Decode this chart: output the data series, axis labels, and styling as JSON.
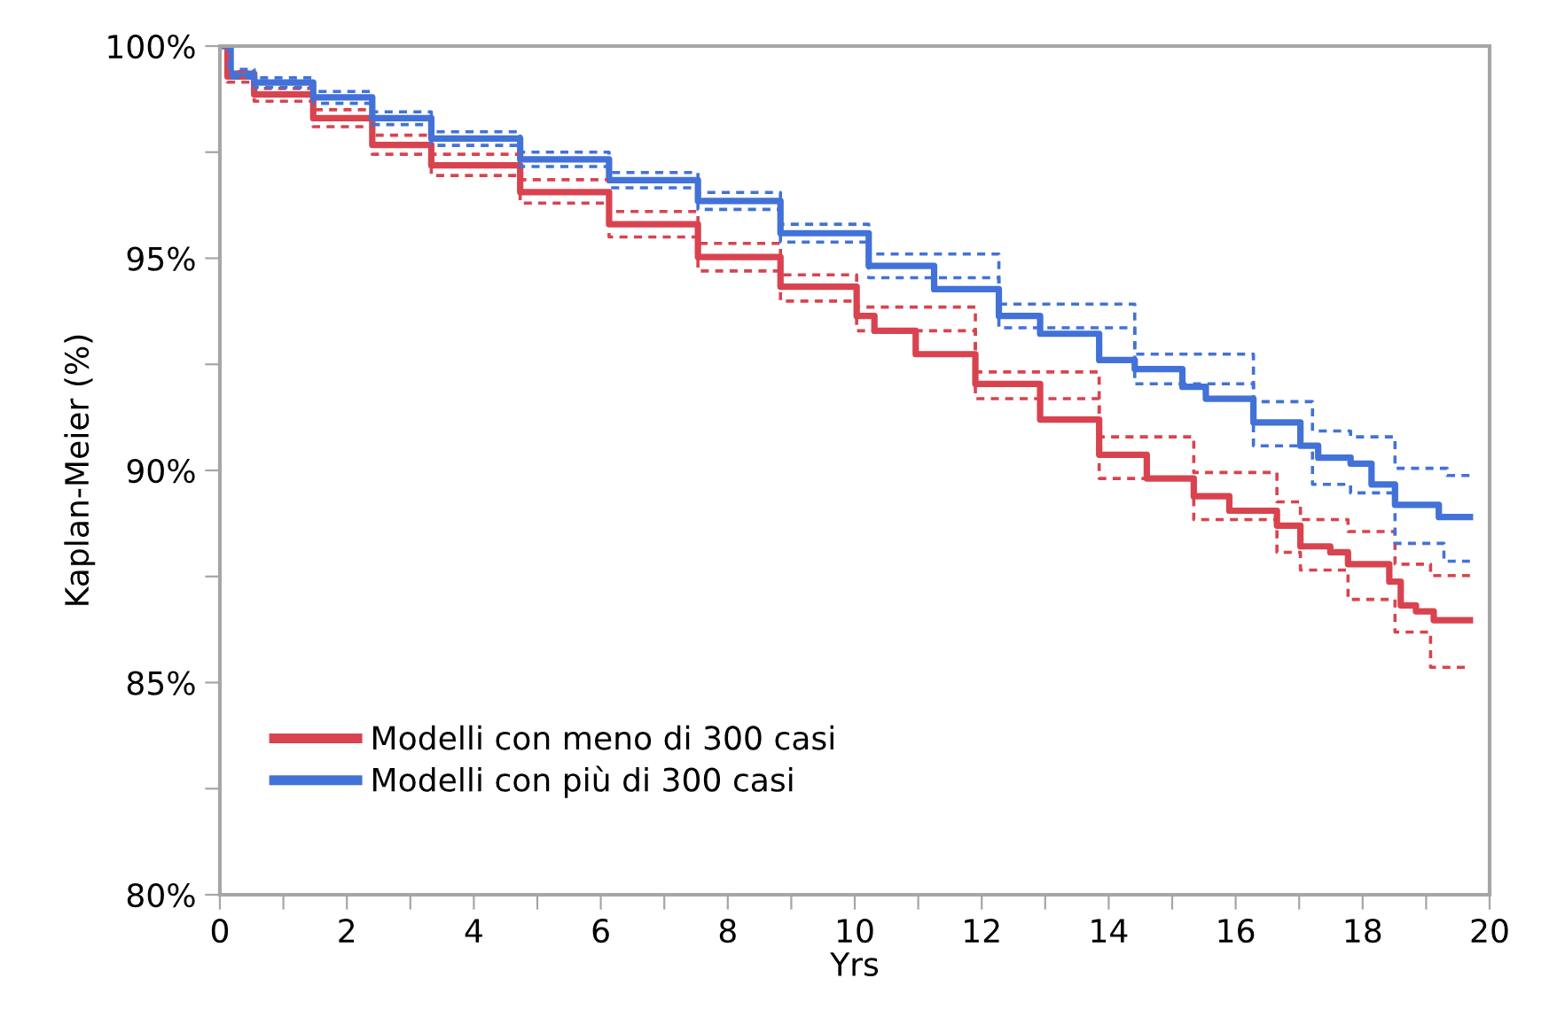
{
  "chart_data": {
    "type": "step",
    "xlabel": "Yrs",
    "ylabel": "Kaplan-Meier (%)",
    "xlim": [
      0,
      20
    ],
    "ylim": [
      80,
      100
    ],
    "xticks": [
      0,
      {
        "value": 1,
        "label": null
      },
      2,
      {
        "value": 3,
        "label": null
      },
      4,
      {
        "value": 5,
        "label": null
      },
      6,
      {
        "value": 7,
        "label": null
      },
      8,
      {
        "value": 9,
        "label": null
      },
      10,
      {
        "value": 11,
        "label": null
      },
      12,
      {
        "value": 13,
        "label": null
      },
      14,
      {
        "value": 15,
        "label": null
      },
      16,
      {
        "value": 17,
        "label": null
      },
      18,
      {
        "value": 19,
        "label": null
      },
      20
    ],
    "yticks": [
      {
        "value": 80,
        "label": "80%"
      },
      {
        "value": 82.5,
        "label": null
      },
      {
        "value": 85,
        "label": "85%"
      },
      {
        "value": 87.5,
        "label": null
      },
      {
        "value": 90,
        "label": "90%"
      },
      {
        "value": 92.5,
        "label": null
      },
      {
        "value": 95,
        "label": "95%"
      },
      {
        "value": 97.5,
        "label": null
      },
      {
        "value": 100,
        "label": "100%"
      }
    ],
    "grid": false,
    "legend": "bottom left",
    "series": [
      {
        "name": "Modelli con meno di 300 casi",
        "color": "#d9434f",
        "line_style": "solid",
        "x": [
          0,
          0.12,
          0.54,
          1.47,
          2.4,
          3.33,
          4.73,
          6.13,
          7.53,
          8.83,
          10.03,
          10.31,
          10.96,
          11.9,
          12.92,
          13.85,
          14.6,
          15.34,
          15.9,
          16.65,
          17.02,
          17.49,
          17.77,
          18.42,
          18.6,
          18.84,
          19.12,
          19.69
        ],
        "values": [
          100,
          99.28,
          98.86,
          98.3,
          97.67,
          97.19,
          96.56,
          95.8,
          95.03,
          94.33,
          93.64,
          93.29,
          92.74,
          92.04,
          91.2,
          90.37,
          89.81,
          89.39,
          89.05,
          88.7,
          88.21,
          88.07,
          87.79,
          87.38,
          86.82,
          86.68,
          86.47,
          86.47
        ]
      },
      {
        "name": "Modelli con più di 300 casi",
        "color": "#4272d8",
        "line_style": "solid",
        "x": [
          0,
          0.17,
          0.54,
          1.47,
          2.4,
          3.33,
          4.73,
          6.13,
          7.53,
          8.83,
          10.22,
          11.25,
          12.27,
          12.92,
          13.85,
          14.41,
          15.16,
          15.53,
          16.28,
          17.02,
          17.3,
          17.81,
          18.14,
          18.51,
          19.2,
          19.69
        ],
        "values": [
          100,
          99.35,
          99.14,
          98.79,
          98.3,
          97.82,
          97.33,
          96.84,
          96.35,
          95.59,
          94.82,
          94.27,
          93.64,
          93.22,
          92.6,
          92.39,
          91.97,
          91.69,
          91.13,
          90.58,
          90.3,
          90.16,
          89.67,
          89.19,
          88.9,
          88.9
        ]
      },
      {
        "color": "#d9434f",
        "line_style": "dashed",
        "x": [
          0,
          0.12,
          0.54,
          1.47,
          2.4,
          3.33,
          4.73,
          6.13,
          7.53,
          8.83,
          10.03,
          11.9,
          13.85,
          15.34,
          16.65,
          17.02,
          17.77,
          18.51,
          19.07,
          19.69
        ],
        "values": [
          100,
          99.4,
          99.0,
          98.5,
          97.9,
          97.45,
          96.85,
          96.1,
          95.35,
          94.61,
          93.85,
          92.32,
          90.79,
          89.95,
          89.26,
          88.84,
          88.56,
          87.79,
          87.52,
          87.52
        ]
      },
      {
        "color": "#d9434f",
        "line_style": "dashed",
        "x": [
          0,
          0.12,
          0.54,
          1.47,
          2.4,
          3.33,
          4.73,
          6.13,
          7.53,
          8.83,
          10.03,
          11.9,
          13.85,
          15.34,
          16.65,
          17.02,
          17.77,
          18.51,
          19.07,
          19.69
        ],
        "values": [
          100,
          99.15,
          98.7,
          98.1,
          97.45,
          96.95,
          96.3,
          95.5,
          94.7,
          93.99,
          93.29,
          91.69,
          89.81,
          88.84,
          88.07,
          87.65,
          86.96,
          86.19,
          85.36,
          85.36
        ]
      },
      {
        "color": "#4272d8",
        "line_style": "dashed",
        "x": [
          0,
          0.17,
          0.54,
          1.47,
          2.4,
          3.33,
          4.73,
          6.13,
          7.53,
          8.83,
          10.22,
          12.27,
          14.41,
          16.28,
          17.21,
          17.81,
          18.51,
          19.33,
          19.69
        ],
        "values": [
          100,
          99.45,
          99.25,
          98.93,
          98.45,
          97.98,
          97.5,
          97.02,
          96.55,
          95.8,
          95.1,
          93.92,
          92.74,
          91.62,
          90.93,
          90.79,
          90.05,
          89.88,
          89.88
        ]
      },
      {
        "color": "#4272d8",
        "line_style": "dashed",
        "x": [
          0,
          0.17,
          0.54,
          1.47,
          2.4,
          3.33,
          4.73,
          6.13,
          7.53,
          8.83,
          10.22,
          12.27,
          14.41,
          16.28,
          17.21,
          17.81,
          18.51,
          19.28,
          19.69
        ],
        "values": [
          100,
          99.25,
          99.03,
          98.65,
          98.15,
          97.66,
          97.16,
          96.66,
          96.15,
          95.38,
          94.54,
          93.36,
          92.04,
          90.58,
          89.67,
          89.47,
          88.28,
          87.86,
          87.86
        ]
      }
    ]
  }
}
